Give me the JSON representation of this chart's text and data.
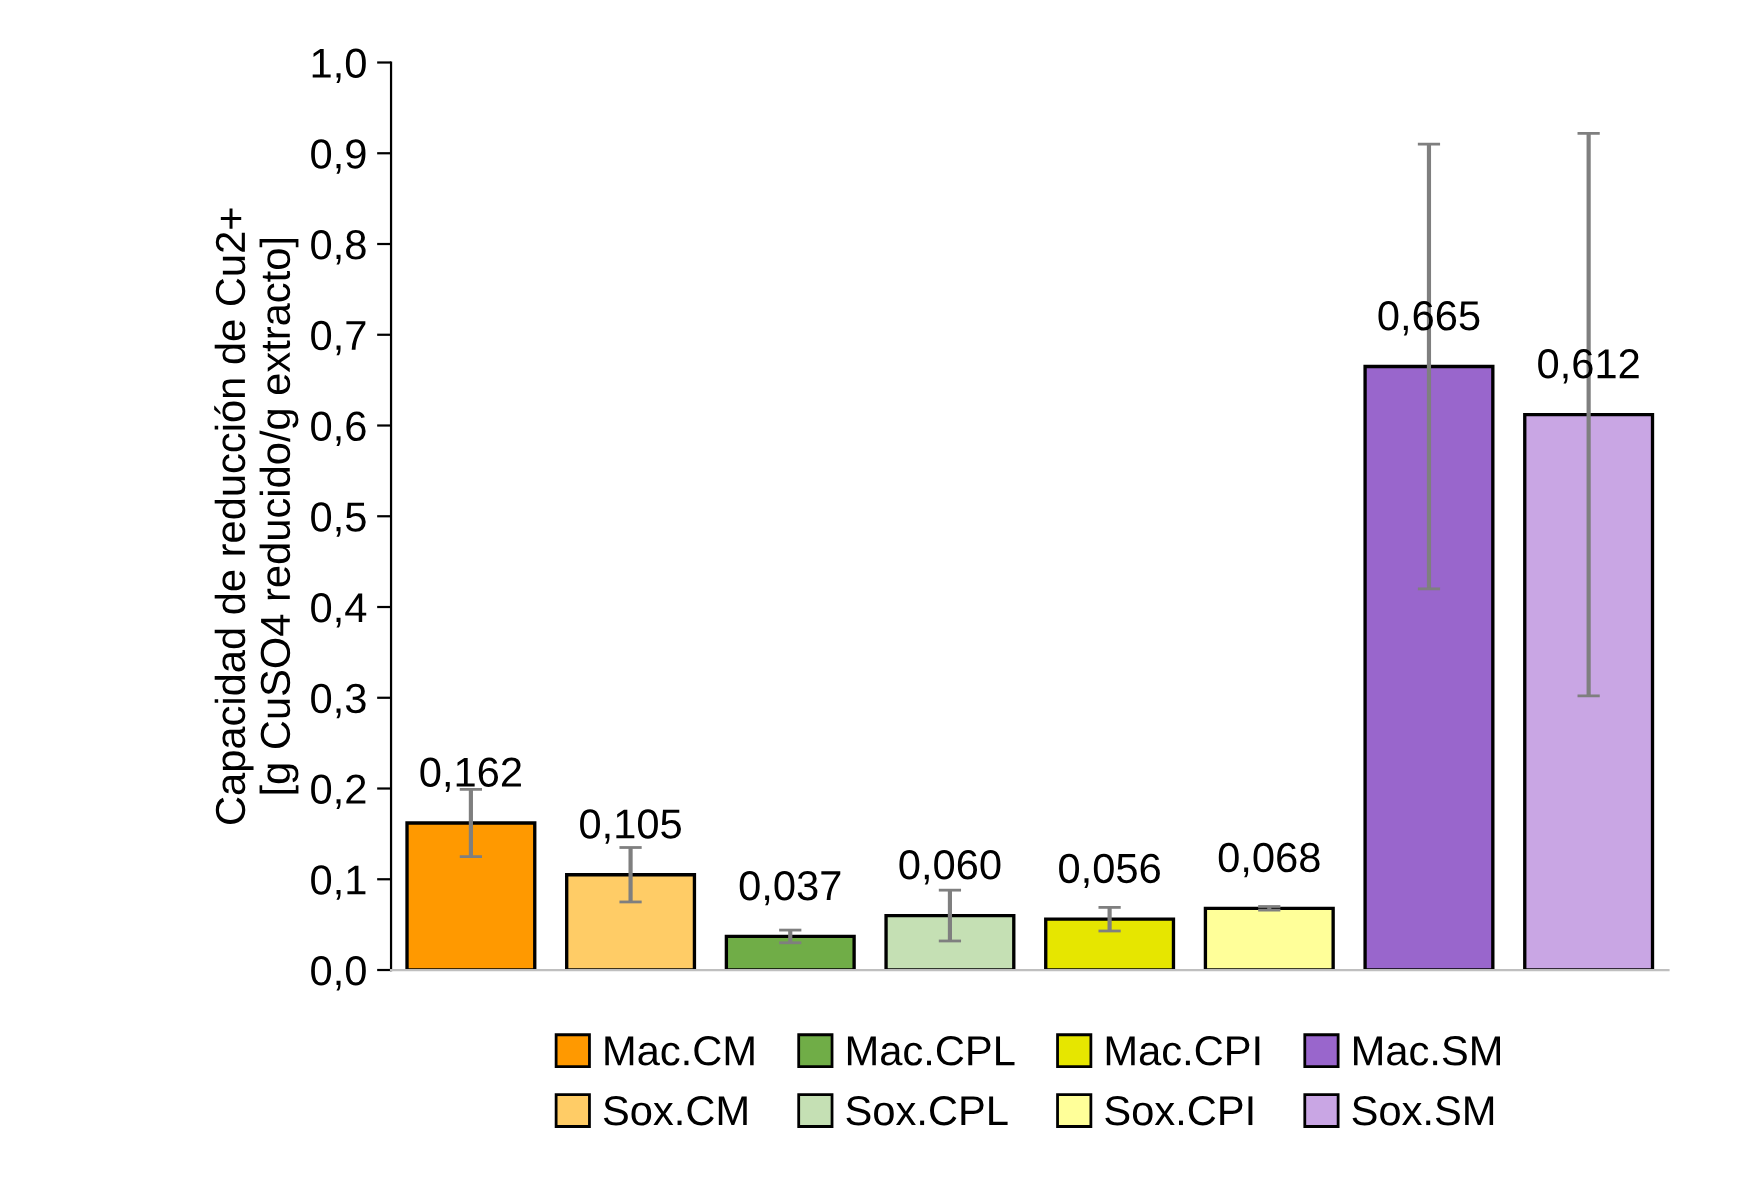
{
  "chart_data": {
    "type": "bar",
    "ylabel": "Capacidad de reducción de Cu2+\n[g CuSO4 reducido/g extracto]",
    "categories": [
      null,
      null,
      null,
      null,
      null,
      null,
      null,
      null
    ],
    "series": [
      {
        "name": "Mac.CM",
        "color": "#ff9900",
        "values": [
          0.162,
          null,
          null,
          null,
          null,
          null,
          null,
          null
        ],
        "errors": [
          0.037,
          null,
          null,
          null,
          null,
          null,
          null,
          null
        ],
        "value_labels": [
          "0,162",
          null,
          null,
          null,
          null,
          null,
          null,
          null
        ]
      },
      {
        "name": "Sox.CM",
        "color": "#ffcc66",
        "values": [
          null,
          0.105,
          null,
          null,
          null,
          null,
          null,
          null
        ],
        "errors": [
          null,
          0.03,
          null,
          null,
          null,
          null,
          null,
          null
        ],
        "value_labels": [
          null,
          "0,105",
          null,
          null,
          null,
          null,
          null,
          null
        ]
      },
      {
        "name": "Mac.CPL",
        "color": "#70ad47",
        "values": [
          null,
          null,
          0.037,
          null,
          null,
          null,
          null,
          null
        ],
        "errors": [
          null,
          null,
          0.007,
          null,
          null,
          null,
          null,
          null
        ],
        "value_labels": [
          null,
          null,
          "0,037",
          null,
          null,
          null,
          null,
          null
        ]
      },
      {
        "name": "Sox.CPL",
        "color": "#c5e0b4",
        "values": [
          null,
          null,
          null,
          0.06,
          null,
          null,
          null,
          null
        ],
        "errors": [
          null,
          null,
          null,
          0.028,
          null,
          null,
          null,
          null
        ],
        "value_labels": [
          null,
          null,
          null,
          "0,060",
          null,
          null,
          null,
          null
        ]
      },
      {
        "name": "Mac.CPI",
        "color": "#e6e600",
        "values": [
          null,
          null,
          null,
          null,
          0.056,
          null,
          null,
          null
        ],
        "errors": [
          null,
          null,
          null,
          null,
          0.013,
          null,
          null,
          null
        ],
        "value_labels": [
          null,
          null,
          null,
          null,
          "0,056",
          null,
          null,
          null
        ]
      },
      {
        "name": "Sox.CPI",
        "color": "#ffff99",
        "values": [
          null,
          null,
          null,
          null,
          null,
          0.068,
          null,
          null
        ],
        "errors": [
          null,
          null,
          null,
          null,
          null,
          0.002,
          null,
          null
        ],
        "value_labels": [
          null,
          null,
          null,
          null,
          null,
          "0,068",
          null,
          null
        ]
      },
      {
        "name": "Mac.SM",
        "color": "#9966cc",
        "values": [
          null,
          null,
          null,
          null,
          null,
          null,
          0.665,
          null
        ],
        "errors": [
          null,
          null,
          null,
          null,
          null,
          null,
          0.245,
          null
        ],
        "value_labels": [
          null,
          null,
          null,
          null,
          null,
          null,
          "0,665",
          null
        ]
      },
      {
        "name": "Sox.SM",
        "color": "#c9a6e4",
        "values": [
          null,
          null,
          null,
          null,
          null,
          null,
          null,
          0.612
        ],
        "errors": [
          null,
          null,
          null,
          null,
          null,
          null,
          null,
          0.31
        ],
        "value_labels": [
          null,
          null,
          null,
          null,
          null,
          null,
          null,
          "0,612"
        ]
      }
    ],
    "ylim": [
      0,
      1
    ],
    "yticks": [
      {
        "value": 0,
        "label": "0,0"
      },
      {
        "value": 0.1,
        "label": "0,1"
      },
      {
        "value": 0.2,
        "label": "0,2"
      },
      {
        "value": 0.3,
        "label": "0,3"
      },
      {
        "value": 0.4,
        "label": "0,4"
      },
      {
        "value": 0.5,
        "label": "0,5"
      },
      {
        "value": 0.6,
        "label": "0,6"
      },
      {
        "value": 0.7,
        "label": "0,7"
      },
      {
        "value": 0.8,
        "label": "0,8"
      },
      {
        "value": 0.9,
        "label": "0,9"
      },
      {
        "value": 1.0,
        "label": "1,0"
      }
    ],
    "legend": "bottom"
  }
}
